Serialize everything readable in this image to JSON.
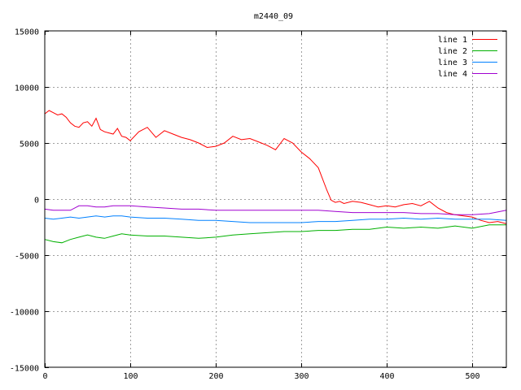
{
  "chart_data": {
    "type": "line",
    "title": "m2440_09",
    "xlabel": "",
    "ylabel": "",
    "xlim": [
      0,
      540
    ],
    "ylim": [
      -15000,
      15000
    ],
    "grid": true,
    "legend_position": "top-right",
    "x_ticks": [
      0,
      100,
      200,
      300,
      400,
      500
    ],
    "y_ticks": [
      -15000,
      -10000,
      -5000,
      0,
      5000,
      10000,
      15000
    ],
    "series": [
      {
        "name": "line 1",
        "color": "#ff0000",
        "x": [
          0,
          5,
          10,
          15,
          20,
          25,
          30,
          35,
          40,
          45,
          50,
          55,
          60,
          65,
          70,
          75,
          80,
          85,
          90,
          95,
          100,
          110,
          120,
          130,
          140,
          150,
          160,
          170,
          180,
          190,
          200,
          210,
          220,
          230,
          240,
          250,
          260,
          270,
          280,
          290,
          300,
          310,
          320,
          330,
          335,
          340,
          345,
          350,
          360,
          370,
          380,
          390,
          400,
          410,
          420,
          430,
          440,
          450,
          460,
          470,
          480,
          490,
          500,
          510,
          520,
          530,
          540
        ],
        "y": [
          7600,
          7900,
          7700,
          7500,
          7600,
          7300,
          6800,
          6500,
          6400,
          6800,
          6900,
          6500,
          7200,
          6200,
          6000,
          5900,
          5800,
          6300,
          5600,
          5500,
          5200,
          6000,
          6400,
          5500,
          6100,
          5800,
          5500,
          5300,
          5000,
          4600,
          4700,
          5000,
          5600,
          5300,
          5400,
          5100,
          4800,
          4400,
          5400,
          5000,
          4200,
          3600,
          2800,
          800,
          -100,
          -300,
          -200,
          -400,
          -200,
          -300,
          -500,
          -700,
          -600,
          -700,
          -500,
          -400,
          -600,
          -200,
          -800,
          -1200,
          -1400,
          -1500,
          -1600,
          -1900,
          -2100,
          -2000,
          -2200
        ]
      },
      {
        "name": "line 2",
        "color": "#00b000",
        "x": [
          0,
          10,
          20,
          30,
          40,
          50,
          60,
          70,
          80,
          90,
          100,
          120,
          140,
          160,
          180,
          200,
          220,
          240,
          260,
          280,
          300,
          320,
          340,
          360,
          380,
          400,
          420,
          440,
          460,
          480,
          500,
          520,
          540
        ],
        "y": [
          -3600,
          -3800,
          -3900,
          -3600,
          -3400,
          -3200,
          -3400,
          -3500,
          -3300,
          -3100,
          -3200,
          -3300,
          -3300,
          -3400,
          -3500,
          -3400,
          -3200,
          -3100,
          -3000,
          -2900,
          -2900,
          -2800,
          -2800,
          -2700,
          -2700,
          -2500,
          -2600,
          -2500,
          -2600,
          -2400,
          -2600,
          -2300,
          -2300
        ]
      },
      {
        "name": "line 3",
        "color": "#0080ff",
        "x": [
          0,
          10,
          20,
          30,
          40,
          50,
          60,
          70,
          80,
          90,
          100,
          120,
          140,
          160,
          180,
          200,
          220,
          240,
          260,
          280,
          300,
          320,
          340,
          360,
          380,
          400,
          420,
          440,
          460,
          480,
          500,
          520,
          540
        ],
        "y": [
          -1700,
          -1800,
          -1700,
          -1600,
          -1700,
          -1600,
          -1500,
          -1600,
          -1500,
          -1500,
          -1600,
          -1700,
          -1700,
          -1800,
          -1900,
          -1900,
          -2000,
          -2100,
          -2100,
          -2100,
          -2100,
          -2000,
          -2000,
          -1900,
          -1800,
          -1800,
          -1700,
          -1800,
          -1700,
          -1800,
          -1800,
          -1800,
          -1900
        ]
      },
      {
        "name": "line 4",
        "color": "#a000d0",
        "x": [
          0,
          10,
          20,
          30,
          40,
          50,
          60,
          70,
          80,
          90,
          100,
          120,
          140,
          160,
          180,
          200,
          220,
          240,
          260,
          280,
          300,
          320,
          340,
          360,
          380,
          400,
          420,
          440,
          460,
          480,
          500,
          520,
          540
        ],
        "y": [
          -900,
          -1000,
          -1000,
          -1000,
          -600,
          -600,
          -700,
          -700,
          -600,
          -600,
          -600,
          -700,
          -800,
          -900,
          -900,
          -1000,
          -1000,
          -1000,
          -1000,
          -1000,
          -1000,
          -1000,
          -1100,
          -1200,
          -1200,
          -1200,
          -1200,
          -1300,
          -1300,
          -1400,
          -1400,
          -1300,
          -1000
        ]
      }
    ]
  }
}
